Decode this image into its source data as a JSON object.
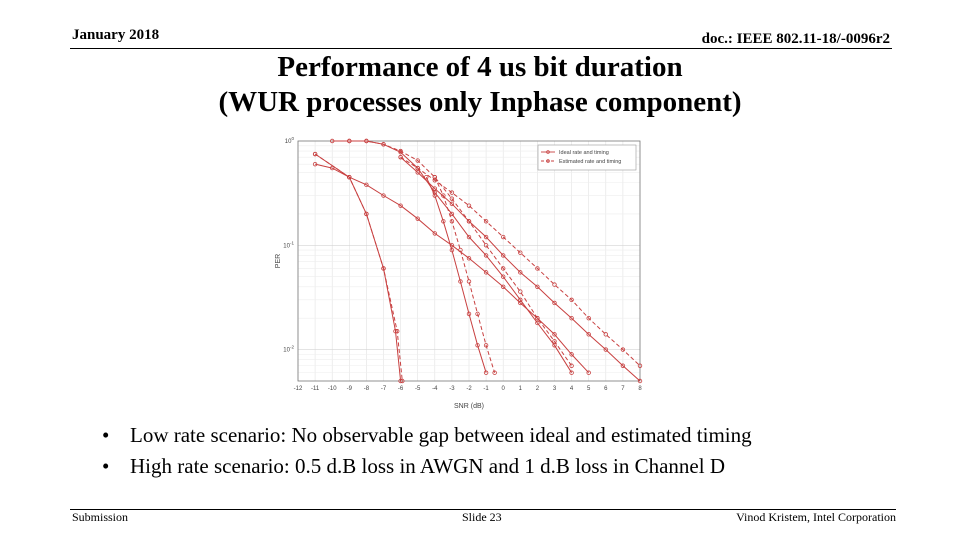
{
  "header": {
    "date": "January 2018",
    "doc": "doc.: IEEE 802.11-18/-0096r2"
  },
  "title": {
    "line1": "Performance of 4 us bit duration",
    "line2": "(WUR processes only Inphase component)"
  },
  "chart_data": {
    "type": "line",
    "xlabel": "SNR (dB)",
    "ylabel": "PER",
    "log_y": true,
    "xlim": [
      -12,
      8
    ],
    "ylim": [
      0.005,
      1
    ],
    "grid": true,
    "legend_position": "top-right",
    "x_ticks": [
      "-12",
      "-11",
      "-10",
      "-9",
      "-8",
      "-7",
      "-6",
      "-5",
      "-4",
      "-3",
      "-2",
      "-1",
      "0",
      "1",
      "2",
      "3",
      "4",
      "5",
      "6",
      "7",
      "8"
    ],
    "y_ticks": [
      {
        "value": 1,
        "base": "10",
        "exp": "0"
      },
      {
        "value": 0.1,
        "base": "10",
        "exp": "-1"
      },
      {
        "value": 0.01,
        "base": "10",
        "exp": "-2"
      }
    ],
    "legend": [
      {
        "name": "Ideal rate and timing",
        "style": "solid"
      },
      {
        "name": "Estimated rate and timing",
        "style": "dashed"
      }
    ],
    "color": "#c84040",
    "series": [
      {
        "legend": 0,
        "x": [
          -11,
          -9,
          -8,
          -7,
          -6.3,
          -6
        ],
        "y": [
          0.75,
          0.45,
          0.2,
          0.06,
          0.015,
          0.005
        ]
      },
      {
        "legend": 1,
        "x": [
          -11,
          -9,
          -8,
          -7,
          -6.2,
          -5.9
        ],
        "y": [
          0.75,
          0.45,
          0.2,
          0.06,
          0.015,
          0.005
        ]
      },
      {
        "legend": 0,
        "x": [
          -10,
          -9,
          -8,
          -7,
          -6,
          -5,
          -4,
          -3,
          -2,
          -1,
          0,
          1,
          2,
          3,
          4
        ],
        "y": [
          1.0,
          1.0,
          1.0,
          0.93,
          0.78,
          0.55,
          0.32,
          0.2,
          0.12,
          0.08,
          0.05,
          0.03,
          0.018,
          0.011,
          0.006
        ]
      },
      {
        "legend": 1,
        "x": [
          -9,
          -8,
          -7,
          -6,
          -5,
          -4,
          -3,
          -2,
          -1,
          0,
          1,
          2,
          3,
          4
        ],
        "y": [
          1.0,
          1.0,
          0.93,
          0.8,
          0.65,
          0.45,
          0.28,
          0.17,
          0.1,
          0.06,
          0.036,
          0.02,
          0.012,
          0.007
        ]
      },
      {
        "legend": 0,
        "x": [
          -11,
          -10,
          -9,
          -8,
          -7,
          -6,
          -5,
          -4,
          -3,
          -2,
          -1,
          0,
          1,
          2,
          3,
          4,
          5
        ],
        "y": [
          0.6,
          0.55,
          0.45,
          0.38,
          0.3,
          0.24,
          0.18,
          0.13,
          0.1,
          0.075,
          0.055,
          0.04,
          0.028,
          0.02,
          0.014,
          0.009,
          0.006
        ]
      },
      {
        "legend": 0,
        "x": [
          -4.5,
          -4,
          -3.5,
          -3,
          -2.5,
          -2,
          -1.5,
          -1
        ],
        "y": [
          0.45,
          0.3,
          0.17,
          0.09,
          0.045,
          0.022,
          0.011,
          0.006
        ]
      },
      {
        "legend": 1,
        "x": [
          -4,
          -3.5,
          -3,
          -2.5,
          -2,
          -1.5,
          -1,
          -0.5
        ],
        "y": [
          0.45,
          0.3,
          0.17,
          0.09,
          0.045,
          0.022,
          0.011,
          0.006
        ]
      },
      {
        "legend": 0,
        "x": [
          -6,
          -5,
          -4,
          -3,
          -2,
          -1,
          0,
          1,
          2,
          3,
          4,
          5,
          6,
          7,
          8
        ],
        "y": [
          0.7,
          0.5,
          0.35,
          0.25,
          0.17,
          0.12,
          0.08,
          0.055,
          0.04,
          0.028,
          0.02,
          0.014,
          0.01,
          0.007,
          0.005
        ]
      },
      {
        "legend": 1,
        "x": [
          -6,
          -5,
          -4,
          -3,
          -2,
          -1,
          0,
          1,
          2,
          3,
          4,
          5,
          6,
          7,
          8
        ],
        "y": [
          0.7,
          0.55,
          0.42,
          0.32,
          0.24,
          0.17,
          0.12,
          0.085,
          0.06,
          0.042,
          0.03,
          0.02,
          0.014,
          0.01,
          0.007
        ]
      }
    ]
  },
  "bullets": [
    "Low rate scenario: No observable gap between ideal and estimated timing",
    "High rate scenario: 0.5 d.B loss in AWGN and 1 d.B loss in Channel D"
  ],
  "bullet_symbol": "•",
  "footer": {
    "left": "Submission",
    "center": "Slide 23",
    "right": "Vinod Kristem, Intel Corporation"
  }
}
